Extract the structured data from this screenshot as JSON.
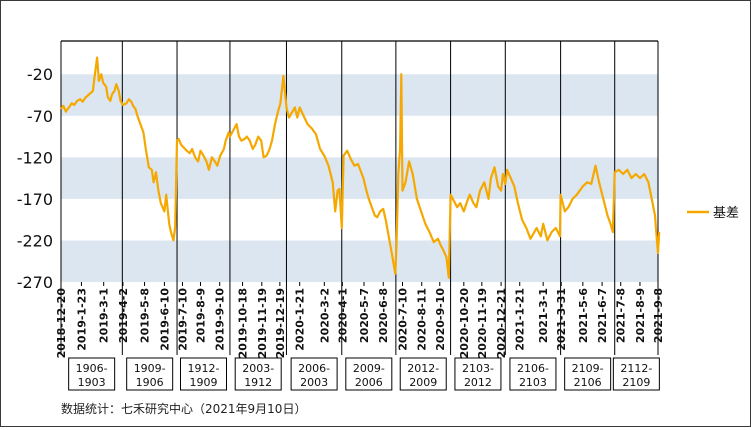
{
  "chart_data": {
    "type": "line",
    "title": "",
    "xlabel": "",
    "ylabel": "",
    "ylim": [
      -270,
      20
    ],
    "y_ticks": [
      -20,
      -70,
      -120,
      -170,
      -220,
      -270
    ],
    "x_tick_labels": [
      "2018-12-20",
      "2019-1-23",
      "2019-3-1",
      "2019-4-2",
      "2019-5-8",
      "2019-6-10",
      "2019-7-10",
      "2019-8-9",
      "2019-9-10",
      "2019-10-18",
      "2019-11-19",
      "2019-12-19",
      "2020-1-21",
      "2020-3-2",
      "2020-4-1",
      "2020-5-7",
      "2020-6-8",
      "2020-7-10",
      "2020-8-11",
      "2020-9-10",
      "2020-10-20",
      "2020-11-19",
      "2020-12-21",
      "2021-1-21",
      "2021-3-1",
      "2021-3-31",
      "2021-5-6",
      "2021-6-7",
      "2021-7-8",
      "2021-8-9",
      "2021-9-8"
    ],
    "segments": [
      "1906-1903",
      "1909-1906",
      "1912-1909",
      "2003-1912",
      "2006-2003",
      "2009-2006",
      "2012-2009",
      "2103-2012",
      "2106-2103",
      "2109-2106",
      "2112-2109"
    ],
    "segment_boundaries": [
      "2019-4-1",
      "2019-7-1",
      "2019-9-27",
      "2019-12-30",
      "2020-3-31",
      "2020-6-29",
      "2020-9-28",
      "2020-12-28",
      "2021-3-30",
      "2021-6-28"
    ],
    "series": [
      {
        "name": "基差",
        "color": "#F5A800",
        "points": [
          [
            "2018-12-20",
            -62
          ],
          [
            "2018-12-24",
            -58
          ],
          [
            "2018-12-28",
            -65
          ],
          [
            "2019-1-2",
            -60
          ],
          [
            "2019-1-7",
            -55
          ],
          [
            "2019-1-11",
            -57
          ],
          [
            "2019-1-16",
            -52
          ],
          [
            "2019-1-21",
            -50
          ],
          [
            "2019-1-25",
            -53
          ],
          [
            "2019-1-30",
            -48
          ],
          [
            "2019-2-11",
            -40
          ],
          [
            "2019-2-14",
            -22
          ],
          [
            "2019-2-18",
            0
          ],
          [
            "2019-2-21",
            -28
          ],
          [
            "2019-2-25",
            -20
          ],
          [
            "2019-2-28",
            -30
          ],
          [
            "2019-3-5",
            -35
          ],
          [
            "2019-3-8",
            -48
          ],
          [
            "2019-3-12",
            -52
          ],
          [
            "2019-3-15",
            -44
          ],
          [
            "2019-3-19",
            -40
          ],
          [
            "2019-3-22",
            -32
          ],
          [
            "2019-3-26",
            -40
          ],
          [
            "2019-3-29",
            -52
          ],
          [
            "2019-4-2",
            -57
          ],
          [
            "2019-4-8",
            -55
          ],
          [
            "2019-4-12",
            -50
          ],
          [
            "2019-4-16",
            -53
          ],
          [
            "2019-4-19",
            -58
          ],
          [
            "2019-4-23",
            -62
          ],
          [
            "2019-4-26",
            -70
          ],
          [
            "2019-5-6",
            -90
          ],
          [
            "2019-5-10",
            -110
          ],
          [
            "2019-5-15",
            -132
          ],
          [
            "2019-5-20",
            -135
          ],
          [
            "2019-5-23",
            -150
          ],
          [
            "2019-5-27",
            -138
          ],
          [
            "2019-5-31",
            -160
          ],
          [
            "2019-6-4",
            -175
          ],
          [
            "2019-6-10",
            -185
          ],
          [
            "2019-6-13",
            -165
          ],
          [
            "2019-6-18",
            -200
          ],
          [
            "2019-6-21",
            -210
          ],
          [
            "2019-6-25",
            -220
          ],
          [
            "2019-6-28",
            -204
          ],
          [
            "2019-7-1",
            -100
          ],
          [
            "2019-7-4",
            -98
          ],
          [
            "2019-7-8",
            -105
          ],
          [
            "2019-7-12",
            -108
          ],
          [
            "2019-7-17",
            -112
          ],
          [
            "2019-7-22",
            -115
          ],
          [
            "2019-7-26",
            -110
          ],
          [
            "2019-7-31",
            -120
          ],
          [
            "2019-8-5",
            -125
          ],
          [
            "2019-8-9",
            -112
          ],
          [
            "2019-8-14",
            -118
          ],
          [
            "2019-8-19",
            -125
          ],
          [
            "2019-8-23",
            -135
          ],
          [
            "2019-8-28",
            -120
          ],
          [
            "2019-9-2",
            -125
          ],
          [
            "2019-9-6",
            -130
          ],
          [
            "2019-9-11",
            -118
          ],
          [
            "2019-9-17",
            -110
          ],
          [
            "2019-9-20",
            -100
          ],
          [
            "2019-9-25",
            -90
          ],
          [
            "2019-9-27",
            -95
          ],
          [
            "2019-10-8",
            -80
          ],
          [
            "2019-10-12",
            -95
          ],
          [
            "2019-10-16",
            -100
          ],
          [
            "2019-10-21",
            -98
          ],
          [
            "2019-10-25",
            -95
          ],
          [
            "2019-10-30",
            -100
          ],
          [
            "2019-11-4",
            -110
          ],
          [
            "2019-11-8",
            -105
          ],
          [
            "2019-11-13",
            -95
          ],
          [
            "2019-11-18",
            -100
          ],
          [
            "2019-11-22",
            -120
          ],
          [
            "2019-11-27",
            -118
          ],
          [
            "2019-12-2",
            -110
          ],
          [
            "2019-12-6",
            -100
          ],
          [
            "2019-12-11",
            -80
          ],
          [
            "2019-12-16",
            -65
          ],
          [
            "2019-12-20",
            -55
          ],
          [
            "2019-12-25",
            -22
          ],
          [
            "2019-12-30",
            -60
          ],
          [
            "2020-1-3",
            -72
          ],
          [
            "2020-1-8",
            -66
          ],
          [
            "2020-1-13",
            -60
          ],
          [
            "2020-1-17",
            -72
          ],
          [
            "2020-1-21",
            -60
          ],
          [
            "2020-2-3",
            -80
          ],
          [
            "2020-2-10",
            -85
          ],
          [
            "2020-2-17",
            -92
          ],
          [
            "2020-2-24",
            -110
          ],
          [
            "2020-3-2",
            -118
          ],
          [
            "2020-3-9",
            -130
          ],
          [
            "2020-3-16",
            -150
          ],
          [
            "2020-3-20",
            -185
          ],
          [
            "2020-3-24",
            -160
          ],
          [
            "2020-3-27",
            -158
          ],
          [
            "2020-3-31",
            -205
          ],
          [
            "2020-4-3",
            -118
          ],
          [
            "2020-4-9",
            -112
          ],
          [
            "2020-4-15",
            -122
          ],
          [
            "2020-4-21",
            -130
          ],
          [
            "2020-4-27",
            -128
          ],
          [
            "2020-5-6",
            -145
          ],
          [
            "2020-5-11",
            -160
          ],
          [
            "2020-5-15",
            -170
          ],
          [
            "2020-5-20",
            -180
          ],
          [
            "2020-5-25",
            -190
          ],
          [
            "2020-5-29",
            -192
          ],
          [
            "2020-6-3",
            -185
          ],
          [
            "2020-6-8",
            -182
          ],
          [
            "2020-6-12",
            -195
          ],
          [
            "2020-6-17",
            -215
          ],
          [
            "2020-6-22",
            -235
          ],
          [
            "2020-6-28",
            -260
          ],
          [
            "2020-6-30",
            -225
          ],
          [
            "2020-7-3",
            -140
          ],
          [
            "2020-7-6",
            -110
          ],
          [
            "2020-7-8",
            -20
          ],
          [
            "2020-7-10",
            -160
          ],
          [
            "2020-7-15",
            -150
          ],
          [
            "2020-7-21",
            -125
          ],
          [
            "2020-7-27",
            -140
          ],
          [
            "2020-8-3",
            -170
          ],
          [
            "2020-8-10",
            -185
          ],
          [
            "2020-8-17",
            -200
          ],
          [
            "2020-8-24",
            -210
          ],
          [
            "2020-8-31",
            -222
          ],
          [
            "2020-9-7",
            -218
          ],
          [
            "2020-9-11",
            -225
          ],
          [
            "2020-9-16",
            -232
          ],
          [
            "2020-9-21",
            -240
          ],
          [
            "2020-9-25",
            -265
          ],
          [
            "2020-9-28",
            -165
          ],
          [
            "2020-10-9",
            -180
          ],
          [
            "2020-10-14",
            -175
          ],
          [
            "2020-10-20",
            -185
          ],
          [
            "2020-10-26",
            -172
          ],
          [
            "2020-10-30",
            -165
          ],
          [
            "2020-11-5",
            -175
          ],
          [
            "2020-11-10",
            -180
          ],
          [
            "2020-11-16",
            -160
          ],
          [
            "2020-11-23",
            -150
          ],
          [
            "2020-11-30",
            -170
          ],
          [
            "2020-12-4",
            -145
          ],
          [
            "2020-12-10",
            -132
          ],
          [
            "2020-12-16",
            -155
          ],
          [
            "2020-12-21",
            -160
          ],
          [
            "2020-12-24",
            -140
          ],
          [
            "2020-12-28",
            -152
          ],
          [
            "2020-12-31",
            -135
          ],
          [
            "2021-1-6",
            -145
          ],
          [
            "2021-1-12",
            -155
          ],
          [
            "2021-1-18",
            -175
          ],
          [
            "2021-1-25",
            -195
          ],
          [
            "2021-2-1",
            -205
          ],
          [
            "2021-2-8",
            -218
          ],
          [
            "2021-2-18",
            -205
          ],
          [
            "2021-2-25",
            -215
          ],
          [
            "2021-3-1",
            -200
          ],
          [
            "2021-3-8",
            -220
          ],
          [
            "2021-3-15",
            -210
          ],
          [
            "2021-3-22",
            -205
          ],
          [
            "2021-3-29",
            -215
          ],
          [
            "2021-3-30",
            -165
          ],
          [
            "2021-4-6",
            -185
          ],
          [
            "2021-4-12",
            -180
          ],
          [
            "2021-4-19",
            -170
          ],
          [
            "2021-4-26",
            -165
          ],
          [
            "2021-5-6",
            -155
          ],
          [
            "2021-5-13",
            -150
          ],
          [
            "2021-5-20",
            -152
          ],
          [
            "2021-5-27",
            -130
          ],
          [
            "2021-6-2",
            -150
          ],
          [
            "2021-6-9",
            -170
          ],
          [
            "2021-6-16",
            -190
          ],
          [
            "2021-6-21",
            -200
          ],
          [
            "2021-6-25",
            -210
          ],
          [
            "2021-6-28",
            -138
          ],
          [
            "2021-7-5",
            -135
          ],
          [
            "2021-7-12",
            -140
          ],
          [
            "2021-7-19",
            -135
          ],
          [
            "2021-7-26",
            -145
          ],
          [
            "2021-8-2",
            -140
          ],
          [
            "2021-8-9",
            -145
          ],
          [
            "2021-8-16",
            -140
          ],
          [
            "2021-8-23",
            -150
          ],
          [
            "2021-8-30",
            -175
          ],
          [
            "2021-9-3",
            -190
          ],
          [
            "2021-9-6",
            -218
          ],
          [
            "2021-9-8",
            -235
          ],
          [
            "2021-9-10",
            -210
          ]
        ]
      }
    ],
    "legend": {
      "label": "基差",
      "position": "right"
    },
    "grid": "alternating horizontal bands"
  },
  "footer": {
    "source": "数据统计：七禾研究中心（2021年9月10日）"
  }
}
